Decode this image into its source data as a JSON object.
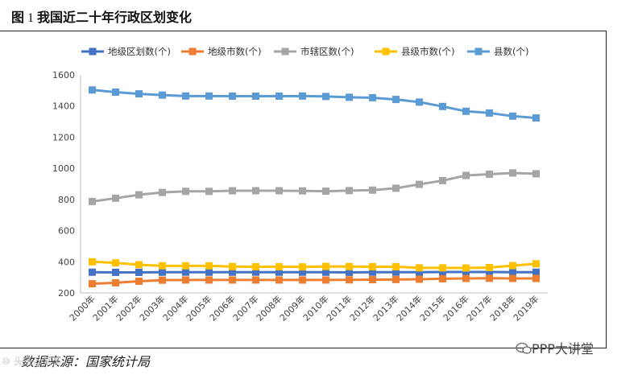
{
  "figure": {
    "title_prefix": "图",
    "title_number": "1",
    "title_text": "我国近二十年行政区划变化",
    "source": "数据来源：国家统计局",
    "watermark_left": "⑩ 头条@某某",
    "watermark_right": "PPP大讲堂"
  },
  "chart_data": {
    "type": "line",
    "title": "我国近二十年行政区划变化",
    "xlabel": "",
    "ylabel": "",
    "ylim": [
      200,
      1600
    ],
    "yticks": [
      200,
      400,
      600,
      800,
      1000,
      1200,
      1400,
      1600
    ],
    "grid": false,
    "legend_position": "top",
    "categories": [
      "2000年",
      "2001年",
      "2002年",
      "2003年",
      "2004年",
      "2005年",
      "2006年",
      "2007年",
      "2008年",
      "2009年",
      "2010年",
      "2011年",
      "2012年",
      "2013年",
      "2014年",
      "2015年",
      "2016年",
      "2017年",
      "2018年",
      "2019年"
    ],
    "series": [
      {
        "name": "地级区划数(个)",
        "color": "#4472C4",
        "values": [
          333,
          332,
          332,
          333,
          333,
          333,
          333,
          333,
          333,
          333,
          333,
          332,
          333,
          333,
          333,
          334,
          334,
          334,
          333,
          333
        ]
      },
      {
        "name": "地级市数(个)",
        "color": "#ED7D31",
        "values": [
          259,
          265,
          275,
          282,
          283,
          283,
          283,
          283,
          283,
          283,
          283,
          284,
          285,
          286,
          288,
          291,
          293,
          294,
          293,
          293
        ]
      },
      {
        "name": "市辖区数(个)",
        "color": "#A5A5A5",
        "values": [
          787,
          808,
          830,
          845,
          852,
          852,
          856,
          856,
          856,
          855,
          853,
          857,
          860,
          872,
          897,
          921,
          954,
          962,
          970,
          965
        ]
      },
      {
        "name": "县级市数(个)",
        "color": "#FFC000",
        "values": [
          400,
          393,
          381,
          374,
          374,
          374,
          369,
          368,
          368,
          367,
          370,
          369,
          368,
          368,
          361,
          361,
          360,
          363,
          375,
          387
        ]
      },
      {
        "name": "县数(个)",
        "color": "#5B9BD5",
        "values": [
          1503,
          1489,
          1478,
          1470,
          1464,
          1464,
          1463,
          1463,
          1463,
          1464,
          1461,
          1456,
          1453,
          1442,
          1425,
          1397,
          1366,
          1355,
          1335,
          1323
        ]
      }
    ]
  }
}
